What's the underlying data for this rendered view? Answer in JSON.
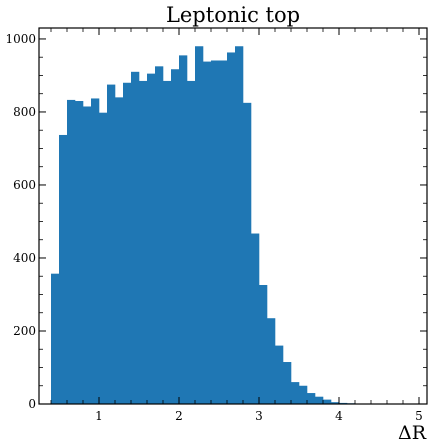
{
  "chart_data": {
    "type": "bar",
    "title": "Leptonic top",
    "xlabel": "ΔR",
    "ylabel": "",
    "xlim": [
      0.25,
      5.1
    ],
    "ylim": [
      0,
      1030
    ],
    "bar_color": "#1f77b4",
    "bin_edges": [
      0.4,
      0.5,
      0.6,
      0.7,
      0.8,
      0.9,
      1.0,
      1.1,
      1.2,
      1.3,
      1.4,
      1.5,
      1.6,
      1.7,
      1.8,
      1.9,
      2.0,
      2.1,
      2.2,
      2.3,
      2.4,
      2.5,
      2.6,
      2.7,
      2.8,
      2.9,
      3.0,
      3.1,
      3.2,
      3.3,
      3.4,
      3.5,
      3.6,
      3.7,
      3.8,
      3.9,
      4.0,
      4.1,
      4.2,
      4.3,
      4.4,
      4.5,
      4.6,
      4.7,
      4.8,
      4.9
    ],
    "values": [
      357,
      737,
      833,
      830,
      815,
      837,
      798,
      875,
      840,
      880,
      910,
      885,
      905,
      925,
      885,
      917,
      955,
      885,
      980,
      938,
      941,
      941,
      963,
      980,
      825,
      467,
      326,
      235,
      160,
      115,
      60,
      50,
      30,
      20,
      12,
      5,
      3,
      2,
      1,
      1,
      1,
      0,
      0,
      0,
      0
    ],
    "x_ticks": [
      1,
      2,
      3,
      4,
      5
    ],
    "y_ticks": [
      0,
      200,
      400,
      600,
      800,
      1000
    ],
    "grid": false
  }
}
